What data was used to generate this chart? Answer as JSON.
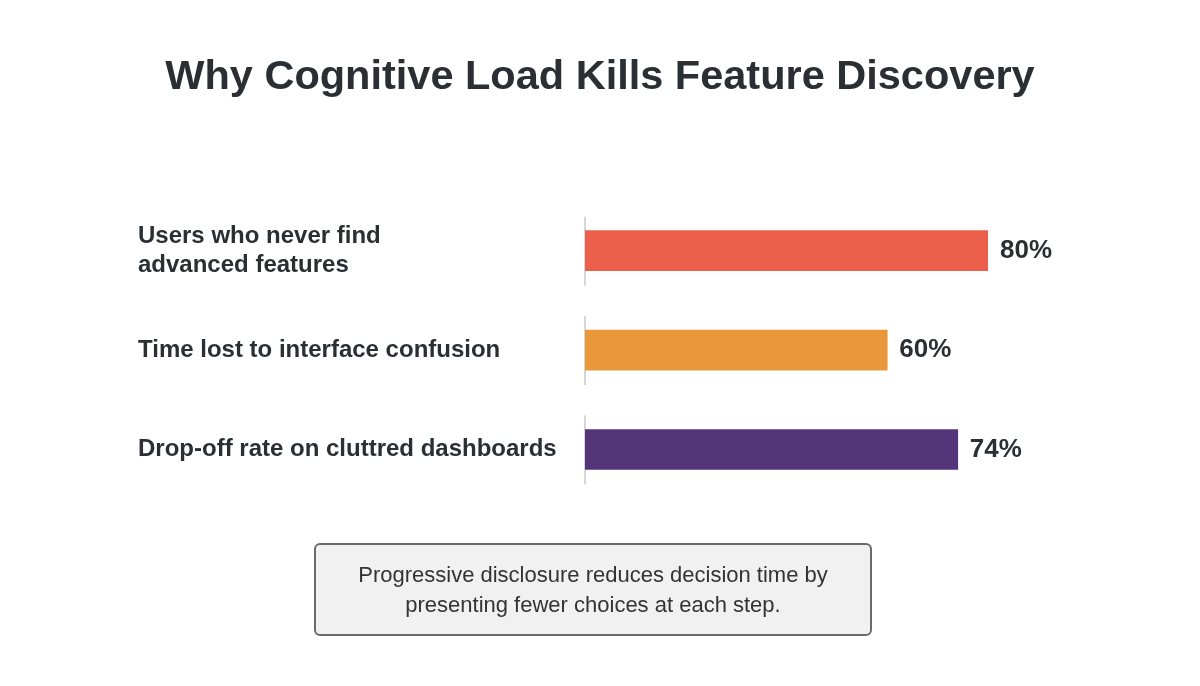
{
  "chart_data": {
    "type": "bar",
    "orientation": "horizontal",
    "title": "Why Cognitive Load Kills Feature Discovery",
    "categories": [
      "Users who never find advanced features",
      "Time lost to interface confusion",
      "Drop-off rate on cluttred dashboards"
    ],
    "values": [
      80,
      60,
      74
    ],
    "colors": [
      "#ec5f4b",
      "#e8973a",
      "#54357a"
    ],
    "value_labels": [
      "80%",
      "60%",
      "74%"
    ],
    "annotations": [
      "Progressive disclosure reduces decision time by presenting fewer choices at each step."
    ]
  }
}
